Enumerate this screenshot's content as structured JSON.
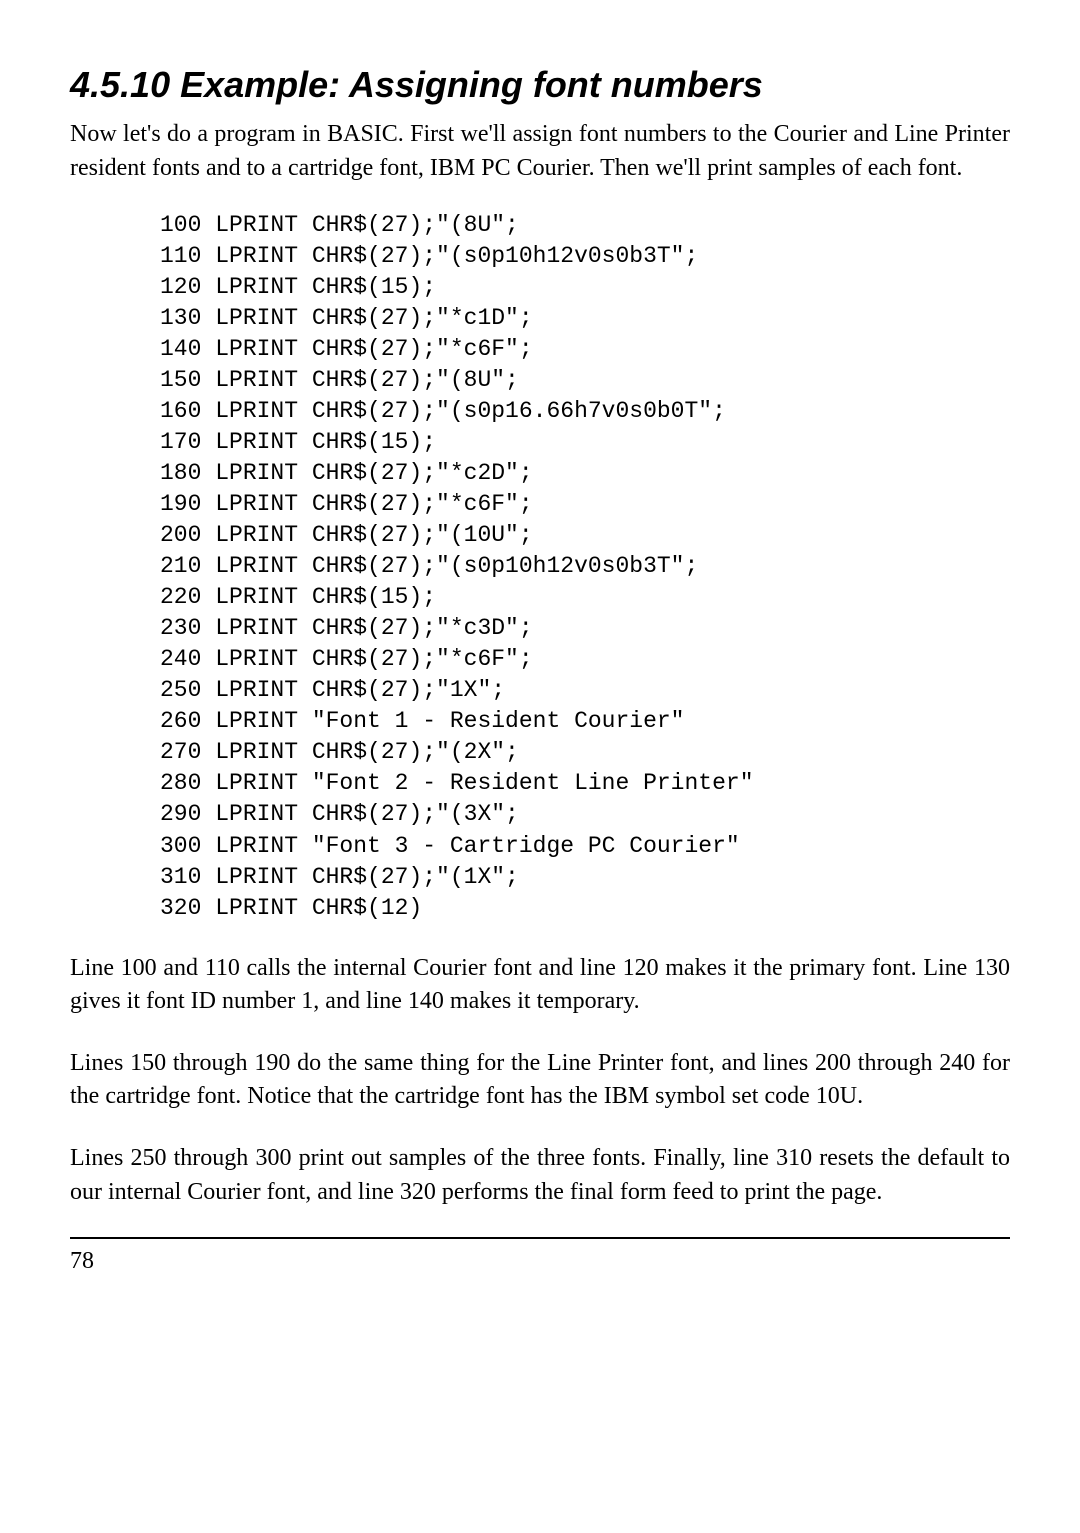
{
  "heading": "4.5.10 Example: Assigning font numbers",
  "intro": "Now let's do a program in BASIC. First we'll assign font numbers to the Courier and Line Printer resident fonts and to a cartridge font, IBM PC Courier. Then we'll print samples of each font.",
  "code": [
    "100 LPRINT CHR$(27);\"(8U\";",
    "110 LPRINT CHR$(27);\"(s0p10h12v0s0b3T\";",
    "120 LPRINT CHR$(15);",
    "130 LPRINT CHR$(27);\"*c1D\";",
    "140 LPRINT CHR$(27);\"*c6F\";",
    "150 LPRINT CHR$(27);\"(8U\";",
    "160 LPRINT CHR$(27);\"(s0p16.66h7v0s0b0T\";",
    "170 LPRINT CHR$(15);",
    "180 LPRINT CHR$(27);\"*c2D\";",
    "190 LPRINT CHR$(27);\"*c6F\";",
    "200 LPRINT CHR$(27);\"(10U\";",
    "210 LPRINT CHR$(27);\"(s0p10h12v0s0b3T\";",
    "220 LPRINT CHR$(15);",
    "230 LPRINT CHR$(27);\"*c3D\";",
    "240 LPRINT CHR$(27);\"*c6F\";",
    "250 LPRINT CHR$(27);\"1X\";",
    "260 LPRINT \"Font 1 - Resident Courier\"",
    "270 LPRINT CHR$(27);\"(2X\";",
    "280 LPRINT \"Font 2 - Resident Line Printer\"",
    "290 LPRINT CHR$(27);\"(3X\";",
    "300 LPRINT \"Font 3 - Cartridge PC Courier\"",
    "310 LPRINT CHR$(27);\"(1X\";",
    "320 LPRINT CHR$(12)"
  ],
  "para1": "Line 100 and 110 calls the internal Courier font and line 120 makes it the primary font. Line 130 gives it font ID number 1, and line 140 makes it temporary.",
  "para2": "Lines 150 through 190 do the same thing for the Line Printer font, and lines 200 through 240 for the cartridge font. Notice that the cartridge font has the IBM symbol set code 10U.",
  "para3": "Lines 250 through 300 print out samples of the three fonts. Finally, line 310 resets the default to our internal Courier font, and line 320 performs the final form feed to print the page.",
  "pageNumber": "78"
}
